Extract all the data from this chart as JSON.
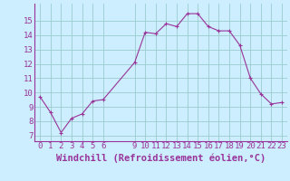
{
  "x": [
    0,
    1,
    2,
    3,
    4,
    5,
    6,
    9,
    10,
    11,
    12,
    13,
    14,
    15,
    16,
    17,
    18,
    19,
    20,
    21,
    22,
    23
  ],
  "y": [
    9.7,
    8.6,
    7.2,
    8.2,
    8.5,
    9.4,
    9.5,
    12.1,
    14.2,
    14.1,
    14.8,
    14.6,
    15.5,
    15.5,
    14.6,
    14.3,
    14.3,
    13.3,
    11.0,
    9.9,
    9.2,
    9.3
  ],
  "line_color": "#993399",
  "marker": "+",
  "marker_size": 3,
  "marker_linewidth": 0.8,
  "bg_color": "#cceeff",
  "grid_color": "#99cccc",
  "xlabel": "Windchill (Refroidissement éolien,°C)",
  "xticks": [
    0,
    1,
    2,
    3,
    4,
    5,
    6,
    9,
    10,
    11,
    12,
    13,
    14,
    15,
    16,
    17,
    18,
    19,
    20,
    21,
    22,
    23
  ],
  "yticks": [
    7,
    8,
    9,
    10,
    11,
    12,
    13,
    14,
    15
  ],
  "ylim": [
    6.6,
    16.2
  ],
  "xlim": [
    -0.5,
    23.5
  ],
  "tick_color": "#993399",
  "tick_fontsize": 6.5,
  "xlabel_fontsize": 7.5,
  "linewidth": 0.8
}
